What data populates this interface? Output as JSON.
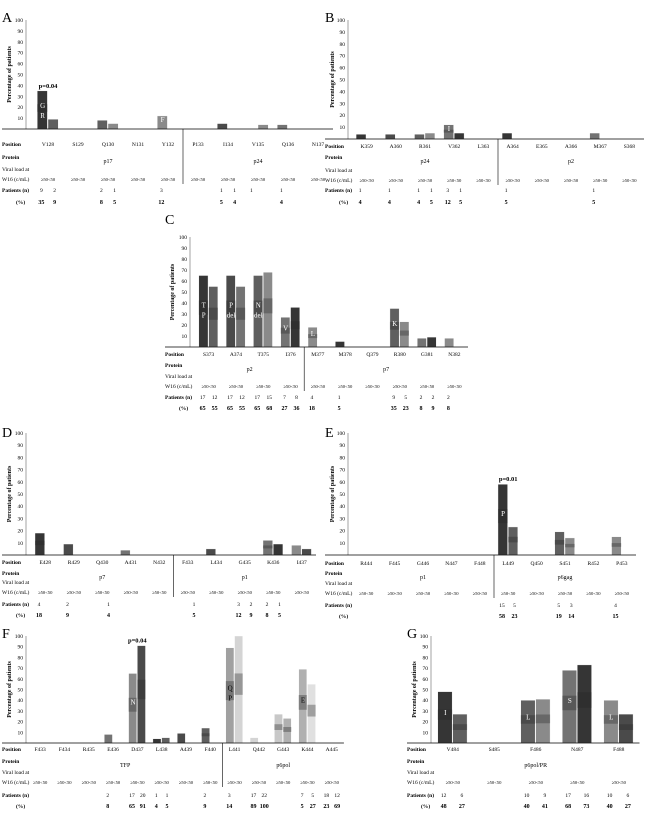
{
  "figure": {
    "row_labels": [
      "Position",
      "Protein",
      "Viral load at",
      "W16 (c/mL)",
      "Patients (n)",
      "(%)"
    ],
    "ylabel": "Percentage of patients",
    "ticks": [
      10,
      20,
      30,
      40,
      50,
      60,
      70,
      80,
      90,
      100
    ],
    "vl": "≥50<50",
    "panels": [
      {
        "letter": "A",
        "pvalue": "p=0.04",
        "positions": [
          "V128",
          "S129",
          "Q130",
          "N131",
          "Y132",
          "P133",
          "I134",
          "V135",
          "Q136",
          "N137"
        ],
        "proteins": [
          "p17",
          "p24"
        ],
        "n": [
          "9",
          "2",
          "",
          "",
          "2",
          "1",
          "",
          "",
          "3",
          "",
          "",
          "",
          "1",
          "1",
          "1",
          "",
          "1",
          "",
          ""
        ],
        "pct": [
          "35",
          "9",
          "",
          "",
          "8",
          "5",
          "",
          "",
          "12",
          "",
          "",
          "",
          "5",
          "4",
          "",
          "",
          "4",
          "",
          ""
        ]
      },
      {
        "letter": "B",
        "positions": [
          "K359",
          "A360",
          "R361",
          "V362",
          "L363",
          "A364",
          "E365",
          "A366",
          "M367",
          "S368"
        ],
        "proteins": [
          "p24",
          "p2"
        ],
        "n": [
          "1",
          "",
          "1",
          "",
          "1",
          "1",
          "3",
          "1",
          "",
          "",
          "1",
          "",
          "",
          "",
          "",
          "",
          "1",
          ""
        ],
        "pct": [
          "4",
          "",
          "4",
          "",
          "4",
          "5",
          "12",
          "5",
          "",
          "",
          "5",
          "",
          "",
          "",
          "",
          "",
          "5",
          ""
        ]
      },
      {
        "letter": "C",
        "positions": [
          "S373",
          "A374",
          "T375",
          "I376",
          "M377",
          "M378",
          "Q379",
          "R380",
          "G381",
          "N382"
        ],
        "proteins": [
          "p2",
          "p7"
        ],
        "n": [
          "17",
          "12",
          "17",
          "12",
          "17",
          "15",
          "7",
          "8",
          "4",
          "",
          "1",
          "",
          "",
          "",
          "9",
          "5",
          "2",
          "2",
          "2",
          ""
        ],
        "pct": [
          "65",
          "55",
          "65",
          "55",
          "65",
          "68",
          "27",
          "36",
          "18",
          "",
          "5",
          "",
          "",
          "",
          "35",
          "23",
          "8",
          "9",
          "8",
          ""
        ]
      },
      {
        "letter": "D",
        "positions": [
          "E428",
          "R429",
          "Q430",
          "A431",
          "N432",
          "F433",
          "L434",
          "G435",
          "K436",
          "I437"
        ],
        "proteins": [
          "p7",
          "p1"
        ],
        "n": [
          "4",
          "",
          "2",
          "",
          "",
          "1",
          "",
          "",
          "",
          "",
          "",
          "1",
          "",
          "",
          "3",
          "2",
          "2",
          "1"
        ],
        "pct": [
          "18",
          "",
          "9",
          "",
          "",
          "4",
          "",
          "",
          "",
          "",
          "",
          "5",
          "",
          "",
          "12",
          "9",
          "8",
          "5"
        ]
      },
      {
        "letter": "E",
        "pvalue": "p=0.01",
        "positions": [
          "R444",
          "F445",
          "G446",
          "N447",
          "F448",
          "L449",
          "Q450",
          "S451",
          "R452",
          "P453"
        ],
        "proteins": [
          "p1",
          "p6gag"
        ],
        "n": [
          "",
          "",
          "",
          "",
          "",
          "",
          "",
          "",
          "",
          "",
          "15",
          "5",
          "",
          "",
          "5",
          "3",
          "",
          "",
          "4",
          ""
        ],
        "pct": [
          "",
          "",
          "",
          "",
          "",
          "",
          "",
          "",
          "",
          "",
          "58",
          "23",
          "",
          "",
          "19",
          "14",
          "",
          "",
          "15",
          ""
        ]
      },
      {
        "letter": "F",
        "pvalue": "p=0.04",
        "positions": [
          "F433",
          "F434",
          "R435",
          "E436",
          "D437",
          "L438",
          "A439",
          "F440",
          "L441",
          "Q442",
          "G443",
          "K444",
          "A445"
        ],
        "proteins": [
          "TFP",
          "p6pol"
        ],
        "n": [
          "",
          "",
          "",
          "",
          "",
          "",
          "2",
          "",
          "17",
          "20",
          "1",
          "1",
          "",
          "",
          "2",
          "",
          "3",
          "",
          "17",
          "22",
          "",
          "",
          "7",
          "5",
          "18",
          "12",
          "",
          ""
        ],
        "pct": [
          "",
          "",
          "",
          "",
          "",
          "",
          "8",
          "",
          "65",
          "91",
          "4",
          "5",
          "",
          "",
          "9",
          "",
          "14",
          "",
          "89",
          "100",
          "",
          "",
          "5",
          "27",
          "23",
          "69",
          "55",
          ""
        ]
      },
      {
        "letter": "G",
        "positions": [
          "V484",
          "S485",
          "F486",
          "N487",
          "F488"
        ],
        "proteins": [
          "p6pol/PR"
        ],
        "n": [
          "12",
          "6",
          "",
          "",
          "10",
          "9",
          "17",
          "16",
          "10",
          "6"
        ],
        "pct": [
          "48",
          "27",
          "",
          "",
          "40",
          "41",
          "68",
          "73",
          "40",
          "27"
        ]
      }
    ]
  },
  "chart_data": [
    {
      "type": "bar",
      "panel": "A",
      "categories": [
        "V128",
        "S129",
        "Q130",
        "N131",
        "Y132",
        "P133",
        "I134",
        "V135",
        "Q136",
        "N137"
      ],
      "series": [
        {
          "name": "≥50",
          "values": [
            35,
            0,
            8,
            0,
            12,
            0,
            5,
            0,
            4,
            0
          ]
        },
        {
          "name": "<50",
          "values": [
            9,
            0,
            5,
            0,
            0,
            0,
            0,
            4,
            0,
            0
          ]
        }
      ],
      "bar_labels": [
        "G/R",
        "del",
        "",
        "",
        "F",
        "",
        "",
        "",
        "",
        ""
      ],
      "ylim": [
        0,
        100
      ]
    },
    {
      "type": "bar",
      "panel": "B",
      "categories": [
        "K359",
        "A360",
        "R361",
        "V362",
        "L363",
        "A364",
        "E365",
        "A366",
        "M367",
        "S368"
      ],
      "series": [
        {
          "name": "≥50",
          "values": [
            4,
            4,
            4,
            12,
            0,
            5,
            0,
            0,
            5,
            0
          ]
        },
        {
          "name": "<50",
          "values": [
            0,
            0,
            5,
            5,
            0,
            0,
            0,
            0,
            0,
            0
          ]
        }
      ],
      "bar_labels": [
        "",
        "",
        "",
        "I",
        "",
        "",
        "",
        "",
        "",
        ""
      ],
      "ylim": [
        0,
        100
      ]
    },
    {
      "type": "bar",
      "panel": "C",
      "categories": [
        "S373",
        "A374",
        "T375",
        "I376",
        "M377",
        "M378",
        "Q379",
        "R380",
        "G381",
        "N382"
      ],
      "series": [
        {
          "name": "≥50",
          "values": [
            65,
            65,
            65,
            27,
            18,
            5,
            0,
            35,
            8,
            8
          ]
        },
        {
          "name": "<50",
          "values": [
            55,
            55,
            68,
            36,
            0,
            0,
            0,
            23,
            9,
            0
          ]
        }
      ],
      "bar_labels": [
        "T/P",
        "P/del",
        "N/del",
        "V",
        "L",
        "",
        "",
        "K",
        "",
        ""
      ],
      "ylim": [
        0,
        100
      ]
    },
    {
      "type": "bar",
      "panel": "D",
      "categories": [
        "E428",
        "R429",
        "Q430",
        "A431",
        "N432",
        "F433",
        "L434",
        "G435",
        "K436",
        "I437"
      ],
      "series": [
        {
          "name": "≥50",
          "values": [
            18,
            9,
            0,
            4,
            0,
            0,
            5,
            0,
            12,
            8
          ]
        },
        {
          "name": "<50",
          "values": [
            0,
            0,
            0,
            0,
            0,
            0,
            0,
            0,
            9,
            5
          ]
        }
      ],
      "bar_labels": [
        "",
        "",
        "",
        "",
        "",
        "",
        "",
        "",
        "",
        ""
      ],
      "ylim": [
        0,
        100
      ]
    },
    {
      "type": "bar",
      "panel": "E",
      "categories": [
        "R444",
        "F445",
        "G446",
        "N447",
        "F448",
        "L449",
        "Q450",
        "S451",
        "R452",
        "P453"
      ],
      "series": [
        {
          "name": "≥50",
          "values": [
            0,
            0,
            0,
            0,
            0,
            58,
            0,
            19,
            0,
            15
          ]
        },
        {
          "name": "<50",
          "values": [
            0,
            0,
            0,
            0,
            0,
            23,
            0,
            14,
            0,
            0
          ]
        }
      ],
      "bar_labels": [
        "",
        "",
        "",
        "",
        "",
        "P",
        "",
        "",
        "",
        ""
      ],
      "ylim": [
        0,
        100
      ]
    },
    {
      "type": "bar",
      "panel": "F",
      "categories": [
        "F433",
        "F434",
        "R435",
        "E436",
        "D437",
        "L438",
        "A439",
        "F440",
        "L441",
        "Q442",
        "G443",
        "K444",
        "A445"
      ],
      "series": [
        {
          "name": "≥50",
          "values": [
            0,
            0,
            0,
            8,
            65,
            4,
            9,
            14,
            89,
            5,
            27,
            69,
            0
          ]
        },
        {
          "name": "<50",
          "values": [
            0,
            0,
            0,
            0,
            91,
            5,
            0,
            0,
            100,
            0,
            23,
            55,
            0
          ]
        }
      ],
      "bar_labels": [
        "",
        "",
        "",
        "",
        "N",
        "",
        "",
        "",
        "Q/P",
        "",
        "",
        "E",
        ""
      ],
      "ylim": [
        0,
        100
      ]
    },
    {
      "type": "bar",
      "panel": "G",
      "categories": [
        "V484",
        "S485",
        "F486",
        "N487",
        "F488"
      ],
      "series": [
        {
          "name": "≥50",
          "values": [
            48,
            0,
            40,
            68,
            40
          ]
        },
        {
          "name": "<50",
          "values": [
            27,
            0,
            41,
            73,
            27
          ]
        }
      ],
      "bar_labels": [
        "I",
        "",
        "L",
        "S",
        "L"
      ],
      "ylim": [
        0,
        100
      ]
    }
  ]
}
